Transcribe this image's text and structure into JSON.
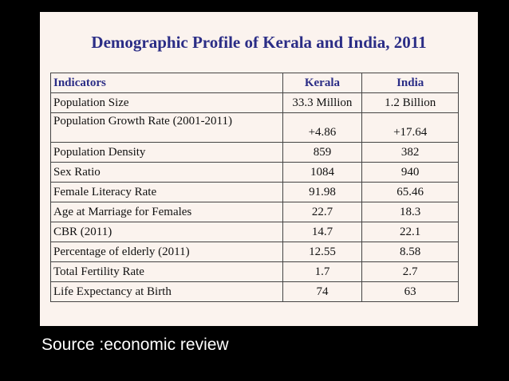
{
  "slide": {
    "title": "Demographic Profile of Kerala and India, 2011",
    "source": "Source :economic review"
  },
  "table": {
    "headers": [
      "Indicators",
      "Kerala",
      "India"
    ],
    "rows": [
      [
        "Population Size",
        "33.3 Million",
        "1.2 Billion"
      ],
      [
        "Population Growth Rate (2001-2011)",
        "+4.86",
        "+17.64"
      ],
      [
        "Population Density",
        "859",
        "382"
      ],
      [
        "Sex Ratio",
        "1084",
        "940"
      ],
      [
        "Female Literacy Rate",
        "91.98",
        "65.46"
      ],
      [
        "Age at Marriage for Females",
        "22.7",
        "18.3"
      ],
      [
        "CBR (2011)",
        "14.7",
        "22.1"
      ],
      [
        "Percentage of elderly (2011)",
        "12.55",
        "8.58"
      ],
      [
        "Total Fertility Rate",
        "1.7",
        "2.7"
      ],
      [
        "Life Expectancy at Birth",
        "74",
        "63"
      ]
    ]
  },
  "colors": {
    "background": "#000000",
    "panel": "#fbf3ee",
    "title": "#2b2d86",
    "header": "#2b2d86",
    "source_text": "#ffffff"
  }
}
